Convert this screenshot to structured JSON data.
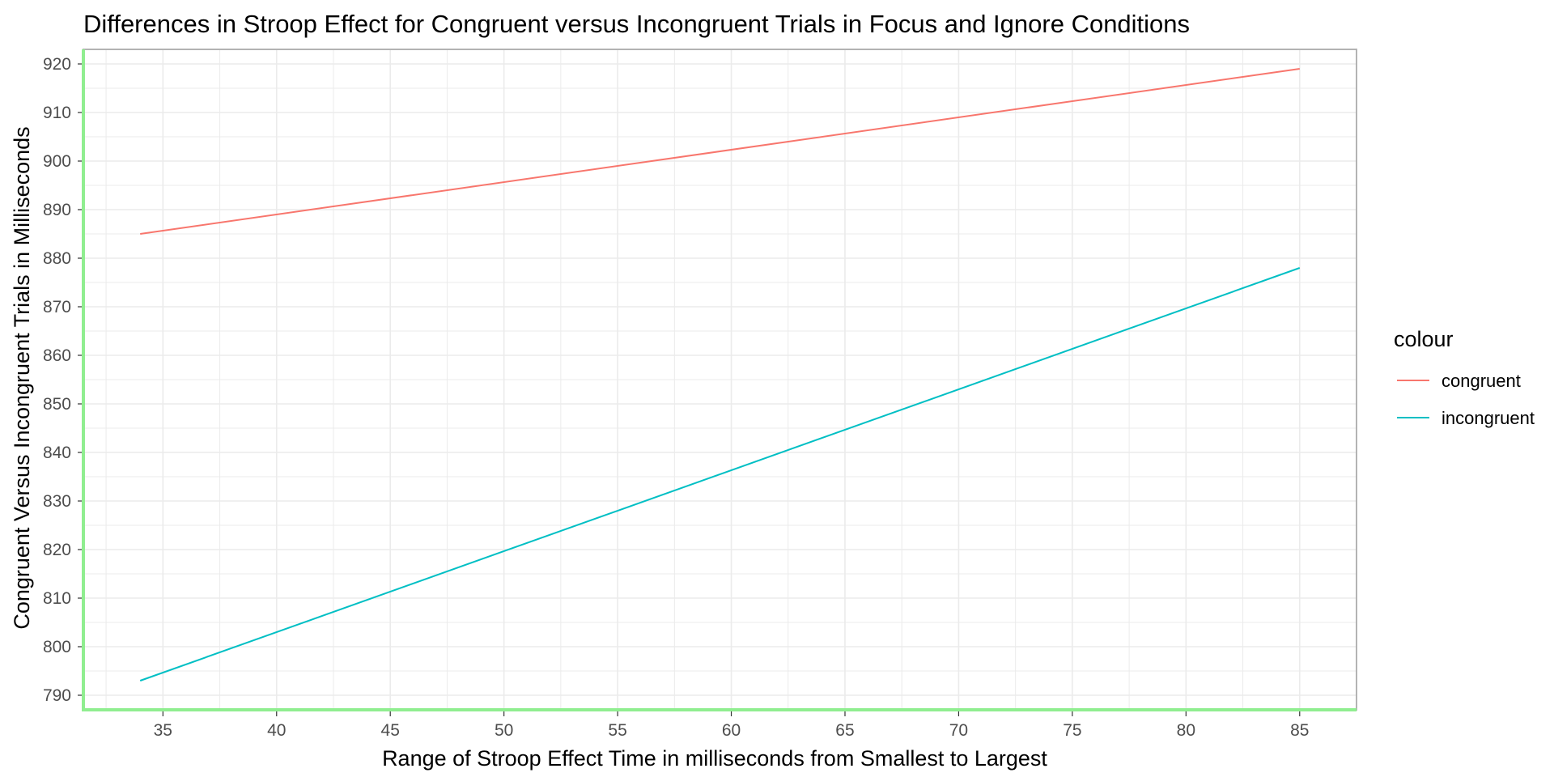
{
  "chart_data": {
    "type": "line",
    "title": "Differences in Stroop Effect for Congruent versus Incongruent Trials in Focus and Ignore Conditions",
    "xlabel": "Range of Stroop Effect Time in milliseconds from Smallest to Largest",
    "ylabel": "Congruent Versus Incongruent Trials in Milliseconds",
    "xlim": [
      31.5,
      87.5
    ],
    "ylim": [
      787,
      923
    ],
    "x_ticks": [
      "35",
      "40",
      "45",
      "50",
      "55",
      "60",
      "65",
      "70",
      "75",
      "80",
      "85"
    ],
    "y_ticks": [
      "790",
      "800",
      "810",
      "820",
      "830",
      "840",
      "850",
      "860",
      "870",
      "880",
      "890",
      "900",
      "910",
      "920"
    ],
    "grid": true,
    "legend": {
      "title": "colour",
      "position": "right"
    },
    "series": [
      {
        "name": "congruent",
        "color": "#F8766D",
        "x": [
          34,
          85
        ],
        "y": [
          885,
          919
        ]
      },
      {
        "name": "incongruent",
        "color": "#00BFC4",
        "x": [
          34,
          85
        ],
        "y": [
          793,
          878
        ]
      }
    ],
    "panel_border_color": "#b3b3b3",
    "axis_highlight_color": "#90ee90",
    "grid_color": "#ebebeb"
  }
}
